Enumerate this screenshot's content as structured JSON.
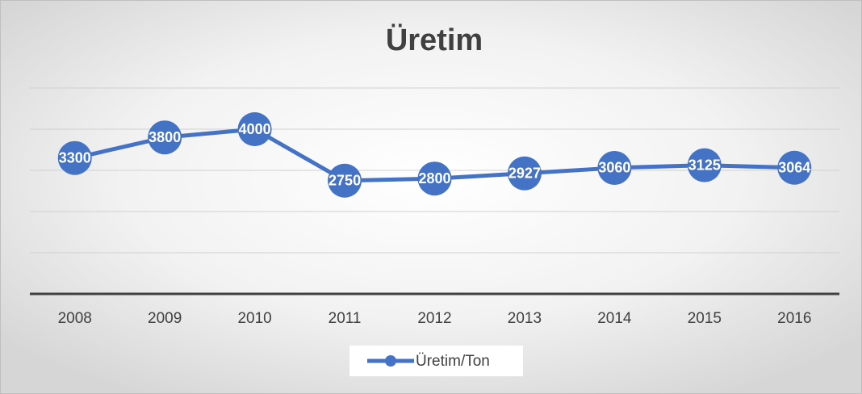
{
  "chart_data": {
    "type": "line",
    "title": "Üretim",
    "categories": [
      "2008",
      "2009",
      "2010",
      "2011",
      "2012",
      "2013",
      "2014",
      "2015",
      "2016"
    ],
    "series": [
      {
        "name": "Üretim/Ton",
        "color": "#4472c4",
        "values": [
          3300,
          3800,
          4000,
          2750,
          2800,
          2927,
          3060,
          3125,
          3064
        ]
      }
    ],
    "ylim": [
      0,
      5000
    ],
    "yticks": [
      0,
      1000,
      2000,
      3000,
      4000,
      5000
    ],
    "grid": true,
    "legend": "bottom"
  }
}
